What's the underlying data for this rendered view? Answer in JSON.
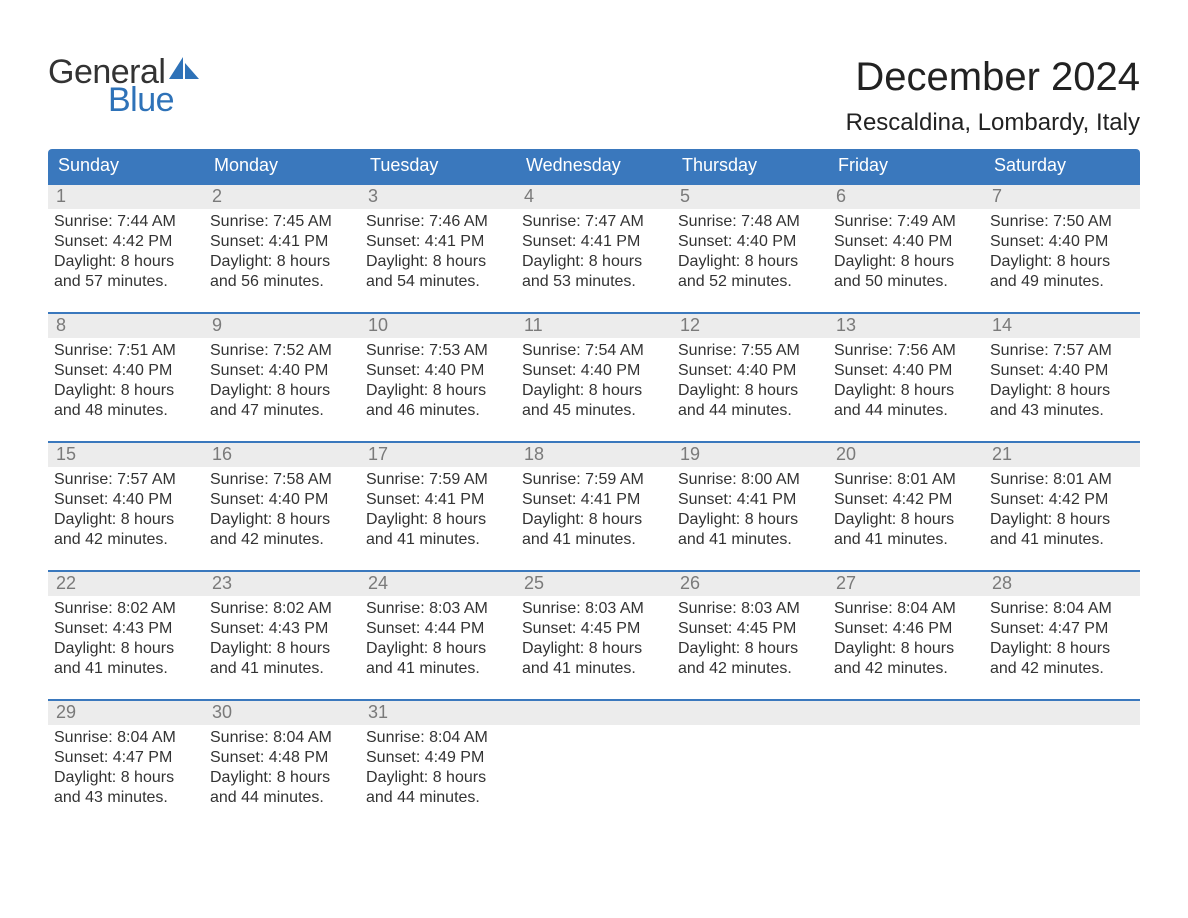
{
  "logo": {
    "word1": "General",
    "word2": "Blue",
    "accent_color": "#2e72b8"
  },
  "title": "December 2024",
  "location": "Rescaldina, Lombardy, Italy",
  "header_bg": "#3a78bd",
  "weekdays": [
    "Sunday",
    "Monday",
    "Tuesday",
    "Wednesday",
    "Thursday",
    "Friday",
    "Saturday"
  ],
  "weeks": [
    [
      {
        "n": "1",
        "sunrise": "Sunrise: 7:44 AM",
        "sunset": "Sunset: 4:42 PM",
        "d1": "Daylight: 8 hours",
        "d2": "and 57 minutes."
      },
      {
        "n": "2",
        "sunrise": "Sunrise: 7:45 AM",
        "sunset": "Sunset: 4:41 PM",
        "d1": "Daylight: 8 hours",
        "d2": "and 56 minutes."
      },
      {
        "n": "3",
        "sunrise": "Sunrise: 7:46 AM",
        "sunset": "Sunset: 4:41 PM",
        "d1": "Daylight: 8 hours",
        "d2": "and 54 minutes."
      },
      {
        "n": "4",
        "sunrise": "Sunrise: 7:47 AM",
        "sunset": "Sunset: 4:41 PM",
        "d1": "Daylight: 8 hours",
        "d2": "and 53 minutes."
      },
      {
        "n": "5",
        "sunrise": "Sunrise: 7:48 AM",
        "sunset": "Sunset: 4:40 PM",
        "d1": "Daylight: 8 hours",
        "d2": "and 52 minutes."
      },
      {
        "n": "6",
        "sunrise": "Sunrise: 7:49 AM",
        "sunset": "Sunset: 4:40 PM",
        "d1": "Daylight: 8 hours",
        "d2": "and 50 minutes."
      },
      {
        "n": "7",
        "sunrise": "Sunrise: 7:50 AM",
        "sunset": "Sunset: 4:40 PM",
        "d1": "Daylight: 8 hours",
        "d2": "and 49 minutes."
      }
    ],
    [
      {
        "n": "8",
        "sunrise": "Sunrise: 7:51 AM",
        "sunset": "Sunset: 4:40 PM",
        "d1": "Daylight: 8 hours",
        "d2": "and 48 minutes."
      },
      {
        "n": "9",
        "sunrise": "Sunrise: 7:52 AM",
        "sunset": "Sunset: 4:40 PM",
        "d1": "Daylight: 8 hours",
        "d2": "and 47 minutes."
      },
      {
        "n": "10",
        "sunrise": "Sunrise: 7:53 AM",
        "sunset": "Sunset: 4:40 PM",
        "d1": "Daylight: 8 hours",
        "d2": "and 46 minutes."
      },
      {
        "n": "11",
        "sunrise": "Sunrise: 7:54 AM",
        "sunset": "Sunset: 4:40 PM",
        "d1": "Daylight: 8 hours",
        "d2": "and 45 minutes."
      },
      {
        "n": "12",
        "sunrise": "Sunrise: 7:55 AM",
        "sunset": "Sunset: 4:40 PM",
        "d1": "Daylight: 8 hours",
        "d2": "and 44 minutes."
      },
      {
        "n": "13",
        "sunrise": "Sunrise: 7:56 AM",
        "sunset": "Sunset: 4:40 PM",
        "d1": "Daylight: 8 hours",
        "d2": "and 44 minutes."
      },
      {
        "n": "14",
        "sunrise": "Sunrise: 7:57 AM",
        "sunset": "Sunset: 4:40 PM",
        "d1": "Daylight: 8 hours",
        "d2": "and 43 minutes."
      }
    ],
    [
      {
        "n": "15",
        "sunrise": "Sunrise: 7:57 AM",
        "sunset": "Sunset: 4:40 PM",
        "d1": "Daylight: 8 hours",
        "d2": "and 42 minutes."
      },
      {
        "n": "16",
        "sunrise": "Sunrise: 7:58 AM",
        "sunset": "Sunset: 4:40 PM",
        "d1": "Daylight: 8 hours",
        "d2": "and 42 minutes."
      },
      {
        "n": "17",
        "sunrise": "Sunrise: 7:59 AM",
        "sunset": "Sunset: 4:41 PM",
        "d1": "Daylight: 8 hours",
        "d2": "and 41 minutes."
      },
      {
        "n": "18",
        "sunrise": "Sunrise: 7:59 AM",
        "sunset": "Sunset: 4:41 PM",
        "d1": "Daylight: 8 hours",
        "d2": "and 41 minutes."
      },
      {
        "n": "19",
        "sunrise": "Sunrise: 8:00 AM",
        "sunset": "Sunset: 4:41 PM",
        "d1": "Daylight: 8 hours",
        "d2": "and 41 minutes."
      },
      {
        "n": "20",
        "sunrise": "Sunrise: 8:01 AM",
        "sunset": "Sunset: 4:42 PM",
        "d1": "Daylight: 8 hours",
        "d2": "and 41 minutes."
      },
      {
        "n": "21",
        "sunrise": "Sunrise: 8:01 AM",
        "sunset": "Sunset: 4:42 PM",
        "d1": "Daylight: 8 hours",
        "d2": "and 41 minutes."
      }
    ],
    [
      {
        "n": "22",
        "sunrise": "Sunrise: 8:02 AM",
        "sunset": "Sunset: 4:43 PM",
        "d1": "Daylight: 8 hours",
        "d2": "and 41 minutes."
      },
      {
        "n": "23",
        "sunrise": "Sunrise: 8:02 AM",
        "sunset": "Sunset: 4:43 PM",
        "d1": "Daylight: 8 hours",
        "d2": "and 41 minutes."
      },
      {
        "n": "24",
        "sunrise": "Sunrise: 8:03 AM",
        "sunset": "Sunset: 4:44 PM",
        "d1": "Daylight: 8 hours",
        "d2": "and 41 minutes."
      },
      {
        "n": "25",
        "sunrise": "Sunrise: 8:03 AM",
        "sunset": "Sunset: 4:45 PM",
        "d1": "Daylight: 8 hours",
        "d2": "and 41 minutes."
      },
      {
        "n": "26",
        "sunrise": "Sunrise: 8:03 AM",
        "sunset": "Sunset: 4:45 PM",
        "d1": "Daylight: 8 hours",
        "d2": "and 42 minutes."
      },
      {
        "n": "27",
        "sunrise": "Sunrise: 8:04 AM",
        "sunset": "Sunset: 4:46 PM",
        "d1": "Daylight: 8 hours",
        "d2": "and 42 minutes."
      },
      {
        "n": "28",
        "sunrise": "Sunrise: 8:04 AM",
        "sunset": "Sunset: 4:47 PM",
        "d1": "Daylight: 8 hours",
        "d2": "and 42 minutes."
      }
    ],
    [
      {
        "n": "29",
        "sunrise": "Sunrise: 8:04 AM",
        "sunset": "Sunset: 4:47 PM",
        "d1": "Daylight: 8 hours",
        "d2": "and 43 minutes."
      },
      {
        "n": "30",
        "sunrise": "Sunrise: 8:04 AM",
        "sunset": "Sunset: 4:48 PM",
        "d1": "Daylight: 8 hours",
        "d2": "and 44 minutes."
      },
      {
        "n": "31",
        "sunrise": "Sunrise: 8:04 AM",
        "sunset": "Sunset: 4:49 PM",
        "d1": "Daylight: 8 hours",
        "d2": "and 44 minutes."
      },
      null,
      null,
      null,
      null
    ]
  ]
}
